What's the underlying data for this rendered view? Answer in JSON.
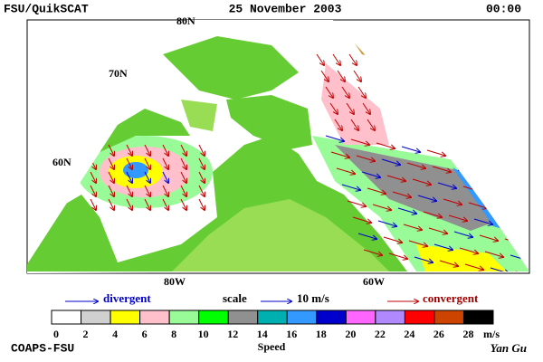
{
  "header": {
    "title": "FSU/QuikSCAT",
    "date": "25 November 2003",
    "time": "00:00"
  },
  "map": {
    "lat_labels": [
      "80N",
      "70N",
      "60N"
    ],
    "lon_labels": [
      "80W",
      "60W"
    ]
  },
  "legend": {
    "divergent": "divergent",
    "scale": "scale",
    "scale_value": "10 m/s",
    "convergent": "convergent"
  },
  "colorbar": {
    "ticks": [
      0,
      2,
      4,
      6,
      8,
      10,
      12,
      14,
      16,
      18,
      20,
      22,
      24,
      26,
      28
    ],
    "colors": [
      "#ffffff",
      "#d0d0d0",
      "#ffff00",
      "#ffc0cb",
      "#98fb98",
      "#00ff00",
      "#909090",
      "#00b0b0",
      "#3399ff",
      "#0000cc",
      "#ff66ff",
      "#b088ff",
      "#ff0000",
      "#cc4400",
      "#000000"
    ],
    "unit": "m/s",
    "label": "Speed"
  },
  "footer": {
    "left": "COAPS-FSU",
    "right": "Yan Gu"
  }
}
